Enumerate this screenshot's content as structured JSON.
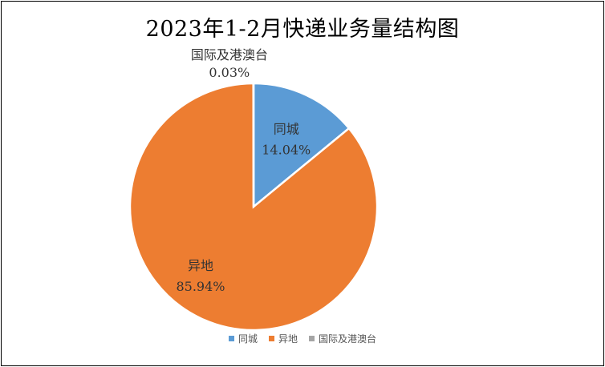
{
  "chart_data": {
    "type": "pie",
    "title": "2023年1-2月快递业务量结构图",
    "slices": [
      {
        "name": "同城",
        "value": 14.04,
        "label": "14.04%",
        "color": "#5B9BD5"
      },
      {
        "name": "异地",
        "value": 85.94,
        "label": "85.94%",
        "color": "#ED7D31"
      },
      {
        "name": "国际及港澳台",
        "value": 0.03,
        "label": "0.03%",
        "color": "#A5A5A5"
      }
    ],
    "legend": {
      "position": "bottom"
    }
  }
}
